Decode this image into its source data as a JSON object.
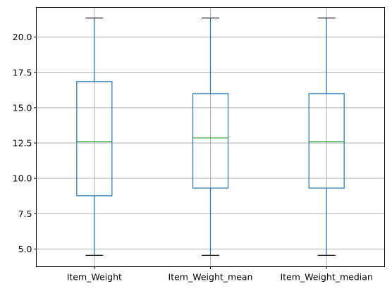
{
  "chart_data": {
    "type": "boxplot",
    "title": "",
    "xlabel": "",
    "ylabel": "",
    "grid": true,
    "ylim": [
      3.75,
      22.1
    ],
    "yticks": [
      5.0,
      7.5,
      10.0,
      12.5,
      15.0,
      17.5,
      20.0
    ],
    "ytick_labels": [
      "5.0",
      "7.5",
      "10.0",
      "12.5",
      "15.0",
      "17.5",
      "20.0"
    ],
    "categories": [
      "Item_Weight",
      "Item_Weight_mean",
      "Item_Weight_median"
    ],
    "boxes": [
      {
        "label": "Item_Weight",
        "whisker_low": 4.555,
        "q1": 8.77,
        "median": 12.6,
        "q3": 16.85,
        "whisker_high": 21.35
      },
      {
        "label": "Item_Weight_mean",
        "whisker_low": 4.555,
        "q1": 9.31,
        "median": 12.86,
        "q3": 16.0,
        "whisker_high": 21.35
      },
      {
        "label": "Item_Weight_median",
        "whisker_low": 4.555,
        "q1": 9.31,
        "median": 12.6,
        "q3": 16.0,
        "whisker_high": 21.35
      }
    ],
    "colors": {
      "box": "#1f77b4",
      "median": "#2ca02c",
      "grid": "#b0b0b0"
    }
  }
}
